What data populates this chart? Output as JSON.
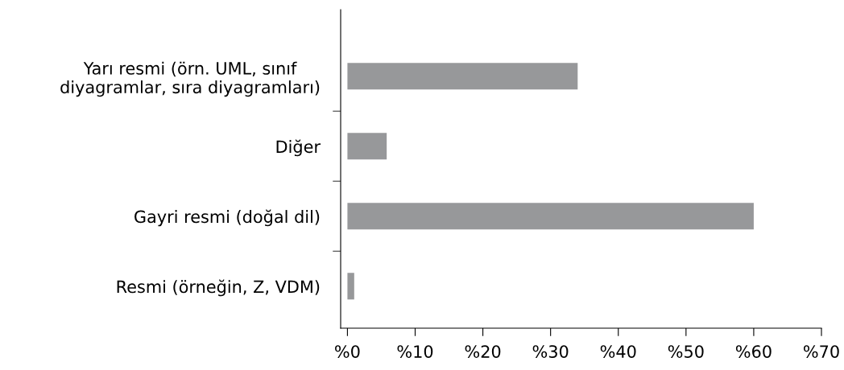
{
  "chart_data": {
    "type": "bar",
    "orientation": "horizontal",
    "categories": [
      "Yarı resmi (örn. UML, sınıf\ndiyagramlar, sıra diyagramları)",
      "Diğer",
      "Gayri resmi (doğal dil)",
      "Resmi (örneğin, Z, VDM)"
    ],
    "values": [
      34,
      5.8,
      60,
      1
    ],
    "color": "#97989a",
    "xlim": [
      -1,
      70
    ],
    "xticks": [
      {
        "value": 0,
        "label": "%0"
      },
      {
        "value": 10,
        "label": "%10"
      },
      {
        "value": 20,
        "label": "%20"
      },
      {
        "value": 30,
        "label": "%30"
      },
      {
        "value": 40,
        "label": "%40"
      },
      {
        "value": 50,
        "label": "%50"
      },
      {
        "value": 60,
        "label": "%60"
      },
      {
        "value": 70,
        "label": "%70"
      }
    ],
    "grid": false,
    "legend": false
  }
}
